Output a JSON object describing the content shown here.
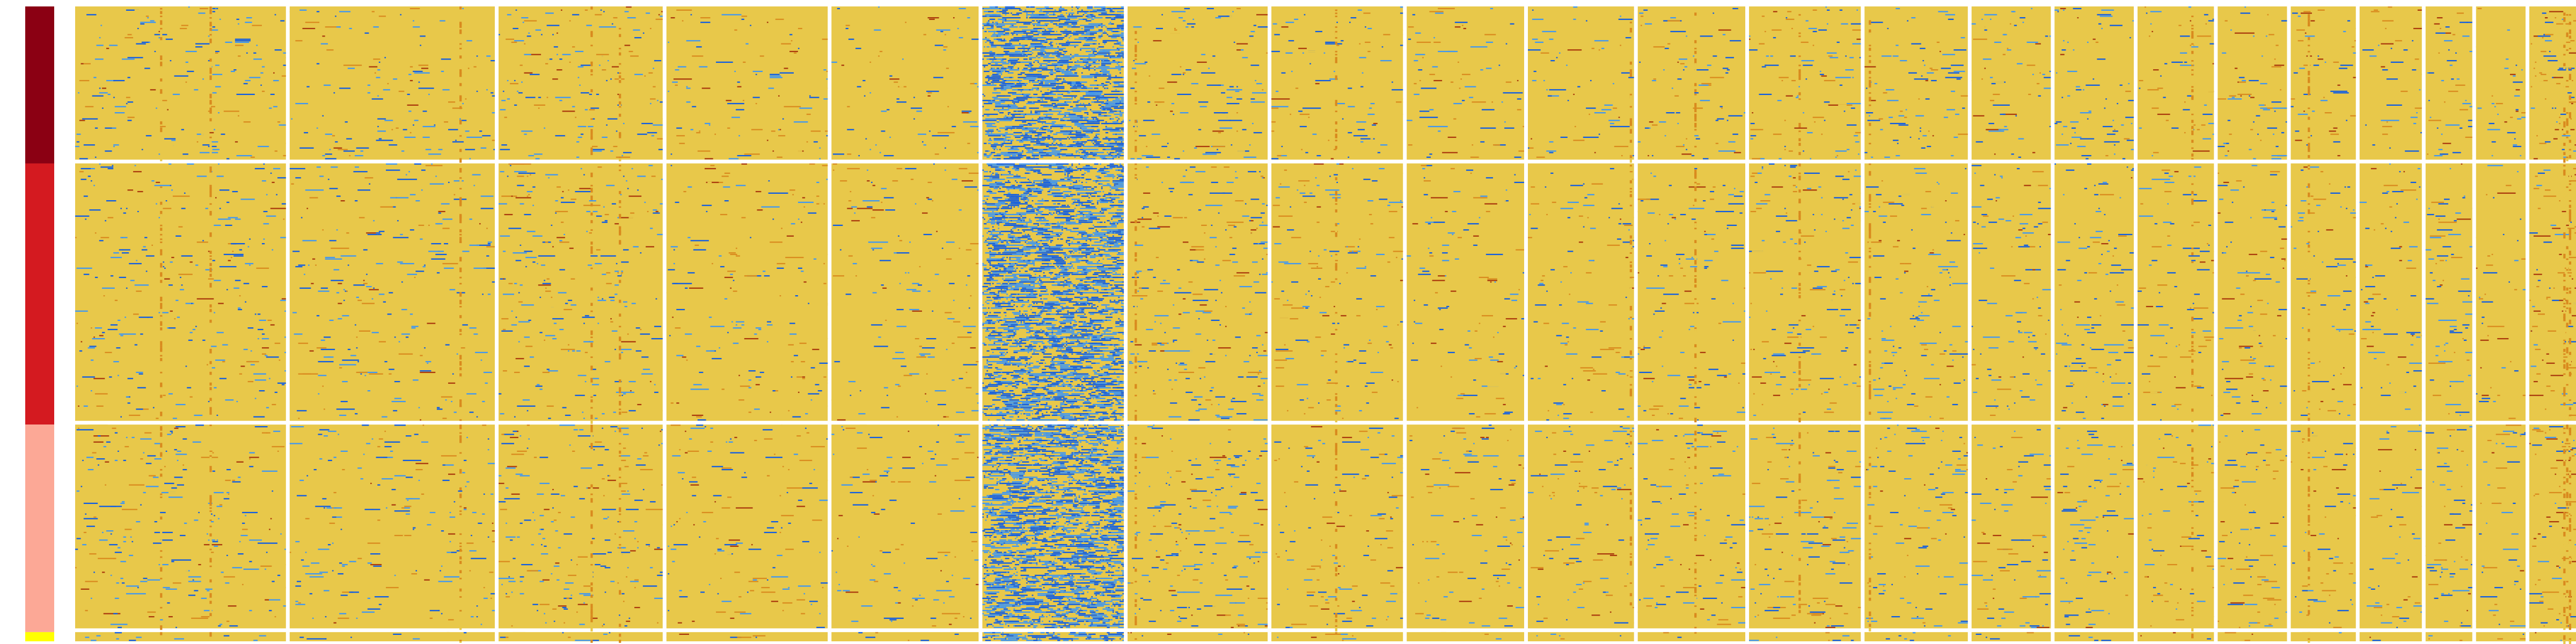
{
  "chart_data": {
    "type": "heatmap",
    "title": "",
    "xlabel": "",
    "ylabel": "",
    "legend": "none",
    "grid": false,
    "value_scale": [
      0,
      1
    ],
    "colorscale": [
      "#0a5ae8",
      "#3c96f5",
      "#9ecadd",
      "#e8c84a",
      "#d98a1e",
      "#a9380c"
    ],
    "baseline_value": 0.5,
    "row_groups": [
      {
        "color": "#8b0013",
        "rows": 100
      },
      {
        "color": "#d41a20",
        "rows": 168
      },
      {
        "color": "#fca896",
        "rows": 133
      },
      {
        "color": "#ffff00",
        "rows": 6
      }
    ],
    "column_blocks": [
      {
        "columns": 149,
        "blue_density": 0.035,
        "warm_density": 0.025,
        "hot_columns": [
          60,
          95
        ]
      },
      {
        "columns": 145,
        "blue_density": 0.03,
        "warm_density": 0.02,
        "hot_columns": [
          120
        ]
      },
      {
        "columns": 116,
        "blue_density": 0.035,
        "warm_density": 0.035,
        "hot_columns": [
          65,
          85
        ]
      },
      {
        "columns": 114,
        "blue_density": 0.02,
        "warm_density": 0.035,
        "hot_columns": []
      },
      {
        "columns": 104,
        "blue_density": 0.02,
        "warm_density": 0.03,
        "hot_columns": []
      },
      {
        "columns": 100,
        "blue_density": 0.72,
        "warm_density": 0.0,
        "hot_columns": []
      },
      {
        "columns": 99,
        "blue_density": 0.04,
        "warm_density": 0.035,
        "hot_columns": [
          5
        ]
      },
      {
        "columns": 93,
        "blue_density": 0.025,
        "warm_density": 0.035,
        "hot_columns": [
          45
        ]
      },
      {
        "columns": 83,
        "blue_density": 0.02,
        "warm_density": 0.035,
        "hot_columns": []
      },
      {
        "columns": 75,
        "blue_density": 0.025,
        "warm_density": 0.03,
        "hot_columns": [
          72
        ]
      },
      {
        "columns": 76,
        "blue_density": 0.03,
        "warm_density": 0.025,
        "hot_columns": [
          40
        ]
      },
      {
        "columns": 79,
        "blue_density": 0.03,
        "warm_density": 0.04,
        "hot_columns": [
          35
        ]
      },
      {
        "columns": 73,
        "blue_density": 0.035,
        "warm_density": 0.02,
        "hot_columns": [
          3
        ]
      },
      {
        "columns": 56,
        "blue_density": 0.03,
        "warm_density": 0.03,
        "hot_columns": []
      },
      {
        "columns": 56,
        "blue_density": 0.04,
        "warm_density": 0.02,
        "hot_columns": []
      },
      {
        "columns": 54,
        "blue_density": 0.025,
        "warm_density": 0.03,
        "hot_columns": [
          38
        ]
      },
      {
        "columns": 49,
        "blue_density": 0.03,
        "warm_density": 0.035,
        "hot_columns": []
      },
      {
        "columns": 46,
        "blue_density": 0.025,
        "warm_density": 0.035,
        "hot_columns": [
          12
        ]
      },
      {
        "columns": 44,
        "blue_density": 0.025,
        "warm_density": 0.025,
        "hot_columns": []
      },
      {
        "columns": 33,
        "blue_density": 0.04,
        "warm_density": 0.025,
        "hot_columns": []
      },
      {
        "columns": 35,
        "blue_density": 0.02,
        "warm_density": 0.03,
        "hot_columns": []
      },
      {
        "columns": 33,
        "blue_density": 0.02,
        "warm_density": 0.1,
        "hot_columns": [
          24,
          26,
          28
        ]
      }
    ]
  }
}
